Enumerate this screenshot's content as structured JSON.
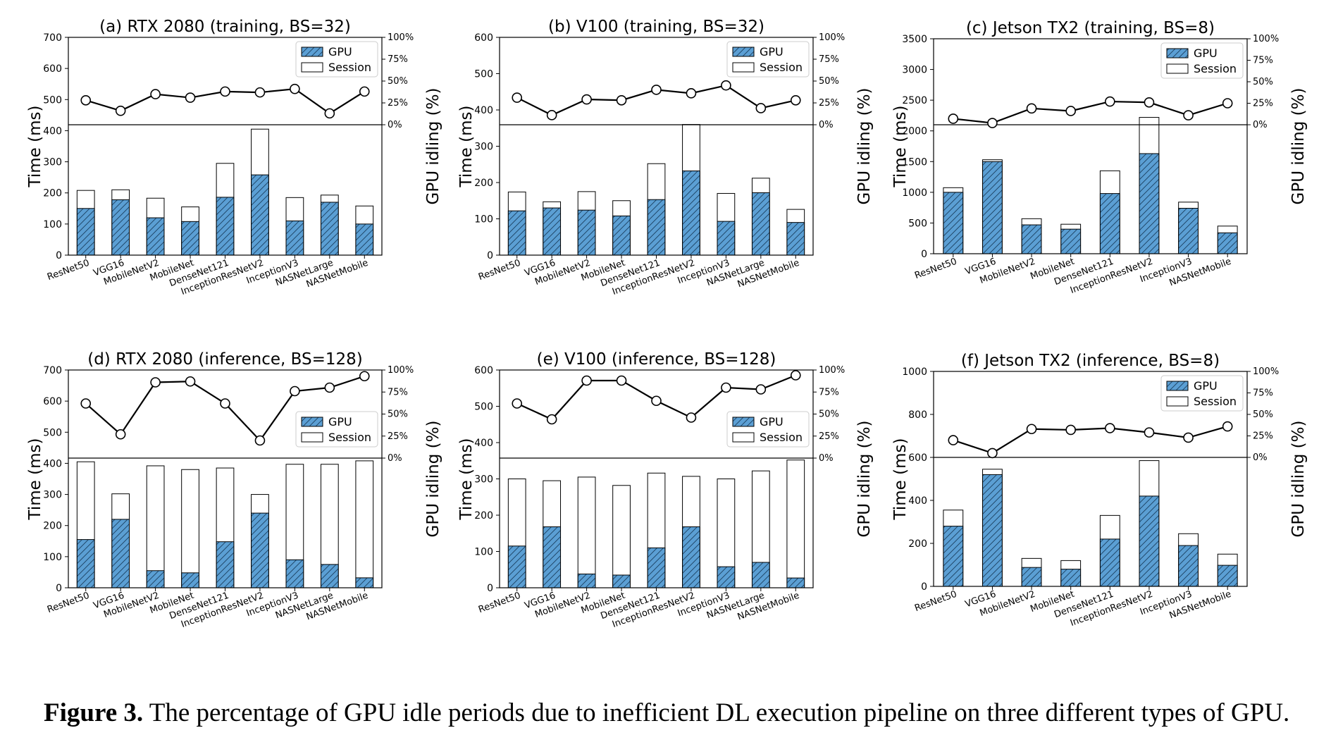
{
  "chart_data": [
    {
      "type": "bar",
      "title": "(a) RTX 2080 (training, BS=32)",
      "categories": [
        "ResNet50",
        "VGG16",
        "MobileNetV2",
        "MobileNet",
        "DenseNet121",
        "InceptionResNetV2",
        "InceptionV3",
        "NASNetLarge",
        "NASNetMobile"
      ],
      "series": [
        {
          "name": "GPU",
          "values": [
            150,
            178,
            120,
            108,
            186,
            258,
            110,
            170,
            100
          ]
        },
        {
          "name": "Session",
          "values": [
            208,
            210,
            183,
            155,
            295,
            405,
            185,
            193,
            158
          ]
        }
      ],
      "idle": [
        28,
        16,
        35,
        31,
        38,
        37,
        41,
        13,
        38
      ],
      "ylim": [
        0,
        700
      ],
      "yticks": [
        "0",
        "100",
        "200",
        "300",
        "400",
        "500",
        "600",
        "700"
      ],
      "ylabel": "Time (ms)",
      "y2label": "GPU idling (%)",
      "y2ticks": [
        "0%",
        "25%",
        "50%",
        "75%",
        "100%"
      ],
      "legend": "top-right"
    },
    {
      "type": "bar",
      "title": "(b) V100 (training, BS=32)",
      "categories": [
        "ResNet50",
        "VGG16",
        "MobileNetV2",
        "MobileNet",
        "DenseNet121",
        "InceptionResNetV2",
        "InceptionV3",
        "NASNetLarge",
        "NASNetMobile"
      ],
      "series": [
        {
          "name": "GPU",
          "values": [
            122,
            130,
            124,
            108,
            153,
            232,
            93,
            172,
            90
          ]
        },
        {
          "name": "Session",
          "values": [
            174,
            147,
            175,
            150,
            252,
            360,
            170,
            212,
            126
          ]
        }
      ],
      "idle": [
        31,
        11,
        29,
        28,
        40,
        36,
        45,
        19,
        28
      ],
      "ylim": [
        0,
        600
      ],
      "yticks": [
        "0",
        "100",
        "200",
        "300",
        "400",
        "500",
        "600"
      ],
      "ylabel": "Time (ms)",
      "y2label": "GPU idling (%)",
      "y2ticks": [
        "0%",
        "25%",
        "50%",
        "75%",
        "100%"
      ],
      "legend": "top-right"
    },
    {
      "type": "bar",
      "title": "(c) Jetson TX2 (training, BS=8)",
      "categories": [
        "ResNet50",
        "VGG16",
        "MobileNetV2",
        "MobileNet",
        "DenseNet121",
        "InceptionResNetV2",
        "InceptionV3",
        "NASNetMobile"
      ],
      "series": [
        {
          "name": "GPU",
          "values": [
            1000,
            1500,
            470,
            400,
            980,
            1630,
            740,
            340
          ]
        },
        {
          "name": "Session",
          "values": [
            1075,
            1530,
            570,
            480,
            1350,
            2220,
            840,
            450
          ]
        }
      ],
      "idle": [
        7,
        2,
        19,
        16,
        27,
        26,
        11,
        25
      ],
      "ylim": [
        0,
        3500
      ],
      "yticks": [
        "0",
        "500",
        "1000",
        "1500",
        "2000",
        "2500",
        "3000",
        "3500"
      ],
      "ylabel": "Time (ms)",
      "y2label": "GPU idling (%)",
      "y2ticks": [
        "0%",
        "25%",
        "50%",
        "75%",
        "100%"
      ],
      "legend": "top-right"
    },
    {
      "type": "bar",
      "title": "(d) RTX 2080 (inference, BS=128)",
      "categories": [
        "ResNet50",
        "VGG16",
        "MobileNetV2",
        "MobileNet",
        "DenseNet121",
        "InceptionResNetV2",
        "InceptionV3",
        "NASNetLarge",
        "NASNetMobile"
      ],
      "series": [
        {
          "name": "GPU",
          "values": [
            155,
            220,
            55,
            48,
            148,
            240,
            90,
            75,
            32
          ]
        },
        {
          "name": "Session",
          "values": [
            405,
            302,
            392,
            380,
            385,
            300,
            397,
            397,
            408
          ]
        }
      ],
      "idle": [
        62,
        27,
        86,
        87,
        62,
        20,
        76,
        80,
        93
      ],
      "ylim": [
        0,
        700
      ],
      "yticks": [
        "0",
        "100",
        "200",
        "300",
        "400",
        "500",
        "600",
        "700"
      ],
      "ylabel": "Time (ms)",
      "y2label": "GPU idling (%)",
      "y2ticks": [
        "0%",
        "25%",
        "50%",
        "75%",
        "100%"
      ],
      "legend": "center-right"
    },
    {
      "type": "bar",
      "title": "(e) V100 (inference, BS=128)",
      "categories": [
        "ResNet50",
        "VGG16",
        "MobileNetV2",
        "MobileNet",
        "DenseNet121",
        "InceptionResNetV2",
        "InceptionV3",
        "NASNetLarge",
        "NASNetMobile"
      ],
      "series": [
        {
          "name": "GPU",
          "values": [
            115,
            168,
            38,
            35,
            110,
            168,
            58,
            70,
            27
          ]
        },
        {
          "name": "Session",
          "values": [
            300,
            295,
            305,
            282,
            316,
            307,
            300,
            322,
            352
          ]
        }
      ],
      "idle": [
        62,
        44,
        88,
        88,
        65,
        46,
        80,
        78,
        94
      ],
      "ylim": [
        0,
        600
      ],
      "yticks": [
        "0",
        "100",
        "200",
        "300",
        "400",
        "500",
        "600"
      ],
      "ylabel": "Time (ms)",
      "y2label": "GPU idling (%)",
      "y2ticks": [
        "0%",
        "25%",
        "50%",
        "75%",
        "100%"
      ],
      "legend": "center-right"
    },
    {
      "type": "bar",
      "title": "(f) Jetson TX2 (inference, BS=8)",
      "categories": [
        "ResNet50",
        "VGG16",
        "MobileNetV2",
        "MobileNet",
        "DenseNet121",
        "InceptionResNetV2",
        "InceptionV3",
        "NASNetMobile"
      ],
      "series": [
        {
          "name": "GPU",
          "values": [
            280,
            520,
            88,
            80,
            220,
            420,
            190,
            98
          ]
        },
        {
          "name": "Session",
          "values": [
            355,
            545,
            130,
            120,
            330,
            585,
            245,
            150
          ]
        }
      ],
      "idle": [
        20,
        5,
        33,
        32,
        34,
        29,
        23,
        36
      ],
      "ylim": [
        0,
        1000
      ],
      "yticks": [
        "0",
        "200",
        "400",
        "600",
        "800",
        "1000"
      ],
      "ylabel": "Time (ms)",
      "y2label": "GPU idling (%)",
      "y2ticks": [
        "0%",
        "25%",
        "50%",
        "75%",
        "100%"
      ],
      "legend": "top-right"
    }
  ],
  "colors": {
    "gpu_fill": "#5b9fd4",
    "session_fill": "#ffffff",
    "line": "#000000"
  },
  "caption": {
    "label": "Figure 3.",
    "text": " The percentage of GPU idle periods due to inefficient DL execution pipeline on three different types of GPU."
  }
}
